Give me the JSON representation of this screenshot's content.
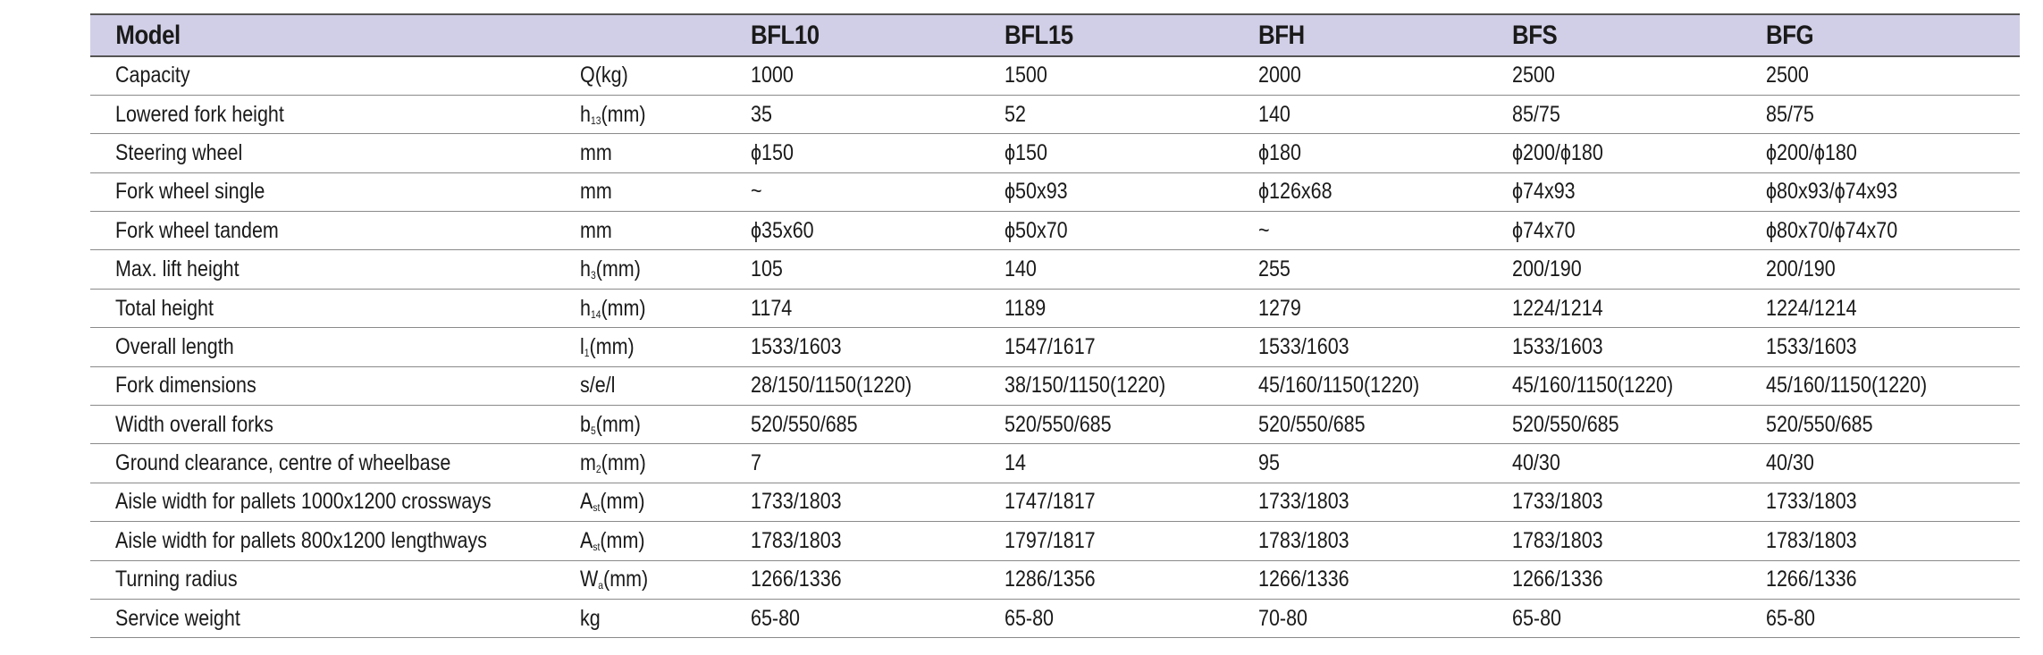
{
  "header": {
    "model_label": "Model",
    "unit_label": "",
    "models": [
      "BFL10",
      "BFL15",
      "BFH",
      "BFS",
      "BFG"
    ]
  },
  "rows": [
    {
      "label": "Capacity",
      "unit": "Q(kg)",
      "values": [
        "1000",
        "1500",
        "2000",
        "2500",
        "2500"
      ]
    },
    {
      "label": "Lowered fork height",
      "unit": "h13(mm)",
      "values": [
        "35",
        "52",
        "140",
        "85/75",
        "85/75"
      ]
    },
    {
      "label": "Steering wheel",
      "unit": "mm",
      "values": [
        "ϕ150",
        "ϕ150",
        "ϕ180",
        "ϕ200/ϕ180",
        "ϕ200/ϕ180"
      ]
    },
    {
      "label": "Fork wheel single",
      "unit": "mm",
      "values": [
        "~",
        "ϕ50x93",
        "ϕ126x68",
        "ϕ74x93",
        "ϕ80x93/ϕ74x93"
      ]
    },
    {
      "label": "Fork wheel tandem",
      "unit": "mm",
      "values": [
        "ϕ35x60",
        "ϕ50x70",
        "~",
        "ϕ74x70",
        "ϕ80x70/ϕ74x70"
      ]
    },
    {
      "label": "Max. lift height",
      "unit": "h3(mm)",
      "values": [
        "105",
        "140",
        "255",
        "200/190",
        "200/190"
      ]
    },
    {
      "label": "Total height",
      "unit": "h14(mm)",
      "values": [
        "1174",
        "1189",
        "1279",
        "1224/1214",
        "1224/1214"
      ]
    },
    {
      "label": "Overall length",
      "unit": "l1(mm)",
      "values": [
        "1533/1603",
        "1547/1617",
        "1533/1603",
        "1533/1603",
        "1533/1603"
      ]
    },
    {
      "label": "Fork dimensions",
      "unit": "s/e/l",
      "values": [
        "28/150/1150(1220)",
        "38/150/1150(1220)",
        "45/160/1150(1220)",
        "45/160/1150(1220)",
        "45/160/1150(1220)"
      ]
    },
    {
      "label": "Width overall forks",
      "unit": "b5(mm)",
      "values": [
        "520/550/685",
        "520/550/685",
        "520/550/685",
        "520/550/685",
        "520/550/685"
      ]
    },
    {
      "label": "Ground clearance, centre of wheelbase",
      "unit": "m2(mm)",
      "values": [
        "7",
        "14",
        "95",
        "40/30",
        "40/30"
      ]
    },
    {
      "label": "Aisle width for pallets 1000x1200 crossways",
      "unit": "Ast(mm)",
      "values": [
        "1733/1803",
        "1747/1817",
        "1733/1803",
        "1733/1803",
        "1733/1803"
      ]
    },
    {
      "label": "Aisle width for pallets 800x1200 lengthways",
      "unit": "Ast(mm)",
      "values": [
        "1783/1803",
        "1797/1817",
        "1783/1803",
        "1783/1803",
        "1783/1803"
      ]
    },
    {
      "label": "Turning radius",
      "unit": "Wa(mm)",
      "values": [
        "1266/1336",
        "1286/1356",
        "1266/1336",
        "1266/1336",
        "1266/1336"
      ]
    },
    {
      "label": "Service weight",
      "unit": "kg",
      "values": [
        "65-80",
        "65-80",
        "70-80",
        "65-80",
        "65-80"
      ]
    }
  ],
  "colors": {
    "header_bg": "#d1cfe7",
    "rule": "#8a8a8a",
    "text": "#1a1a1a"
  }
}
